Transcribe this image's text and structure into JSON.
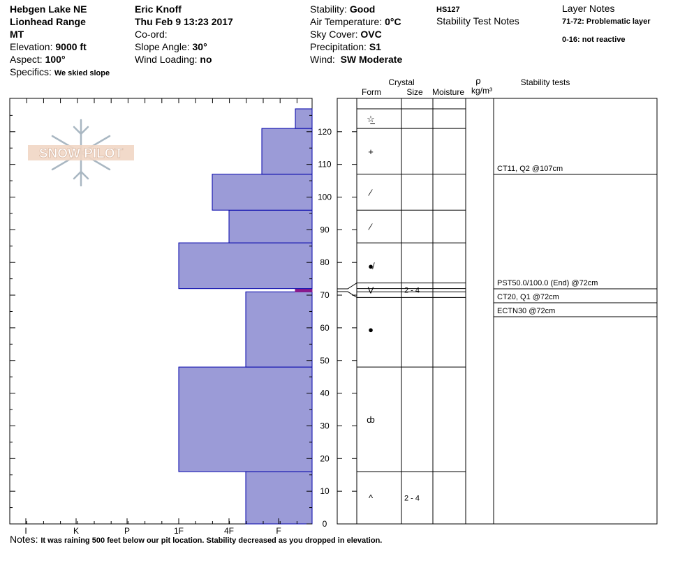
{
  "header": {
    "col1": {
      "location": "Hebgen Lake NE",
      "range": "Lionhead Range",
      "state": "MT",
      "elevation_label": "Elevation:",
      "elevation": "9000 ft",
      "aspect_label": "Aspect:",
      "aspect": "100°",
      "specifics_label": "Specifics:",
      "specifics": "We skied slope"
    },
    "col2": {
      "observer": "Eric Knoff",
      "datetime": "Thu Feb 9 13:23 2017",
      "coord_label": "Co-ord:",
      "slope_label": "Slope Angle:",
      "slope": "30°",
      "wind_loading_label": "Wind Loading:",
      "wind_loading": "no"
    },
    "col3": {
      "stability_label": "Stability:",
      "stability": "Good",
      "air_temp_label": "Air Temperature:",
      "air_temp": "0°C",
      "sky_label": "Sky Cover:",
      "sky": "OVC",
      "precip_label": "Precipitation:",
      "precip": "S1",
      "wind_label": "Wind:",
      "wind": "SW Moderate"
    },
    "col4": {
      "hs": "HS127",
      "stability_notes": "Stability Test Notes"
    },
    "col5": {
      "layer_notes_title": "Layer Notes",
      "note1": "71-72: Problematic layer",
      "note2": "0-16: not reactive"
    }
  },
  "logo_text": "SNOW PILOT",
  "notes_label": "Notes:",
  "notes": "It was raining 500 feet below our pit location. Stability decreased as you dropped in elevation.",
  "table_headers": {
    "crystal": "Crystal",
    "form": "Form",
    "size": "Size",
    "moisture": "Moisture",
    "rho": "ρ",
    "density_unit": "kg/m³",
    "stability_tests": "Stability tests"
  },
  "colors": {
    "layer_fill": "#9b9bd7",
    "layer_stroke": "#0000aa",
    "weak_layer": "#8b1a8b"
  },
  "chart_data": {
    "type": "bar",
    "title": "",
    "x_axis": {
      "tick_labels": [
        "I",
        "K",
        "P",
        "1F",
        "4F",
        "F"
      ]
    },
    "y_axis": {
      "label": "",
      "range": [
        0,
        130
      ],
      "ticks": [
        0,
        10,
        20,
        30,
        40,
        50,
        60,
        70,
        80,
        90,
        100,
        110,
        120
      ]
    },
    "hardness_layers": [
      {
        "bottom": 0,
        "top": 16,
        "hardness": "4F-"
      },
      {
        "bottom": 16,
        "top": 48,
        "hardness": "1F"
      },
      {
        "bottom": 48,
        "top": 71,
        "hardness": "4F-"
      },
      {
        "bottom": 71,
        "top": 72,
        "hardness": "F-"
      },
      {
        "bottom": 72,
        "top": 86,
        "hardness": "1F"
      },
      {
        "bottom": 86,
        "top": 96,
        "hardness": "4F"
      },
      {
        "bottom": 96,
        "top": 107,
        "hardness": "4F+"
      },
      {
        "bottom": 107,
        "top": 121,
        "hardness": "F+"
      },
      {
        "bottom": 121,
        "top": 127,
        "hardness": "F-"
      }
    ]
  },
  "layers_table": [
    {
      "bottom": 121,
      "top": 127,
      "form": "☆̲",
      "size": ""
    },
    {
      "bottom": 107,
      "top": 121,
      "form": "+",
      "size": ""
    },
    {
      "bottom": 96,
      "top": 107,
      "form": "⁄",
      "size": ""
    },
    {
      "bottom": 86,
      "top": 96,
      "form": "⁄",
      "size": ""
    },
    {
      "bottom": 72,
      "top": 86,
      "form": "●̸",
      "size": ""
    },
    {
      "bottom": 71,
      "top": 72,
      "form": "V",
      "size": "2 - 4"
    },
    {
      "bottom": 48,
      "top": 71,
      "form": "●",
      "size": ""
    },
    {
      "bottom": 16,
      "top": 48,
      "form": "ȸ",
      "size": ""
    },
    {
      "bottom": 0,
      "top": 16,
      "form": "^",
      "size": "2 - 4"
    }
  ],
  "stability_tests": [
    {
      "text": "CT11, Q2 @107cm"
    },
    {
      "text": "PST50.0/100.0 (End) @72cm"
    },
    {
      "text": "CT20, Q1 @72cm"
    },
    {
      "text": "ECTN30 @72cm"
    }
  ]
}
